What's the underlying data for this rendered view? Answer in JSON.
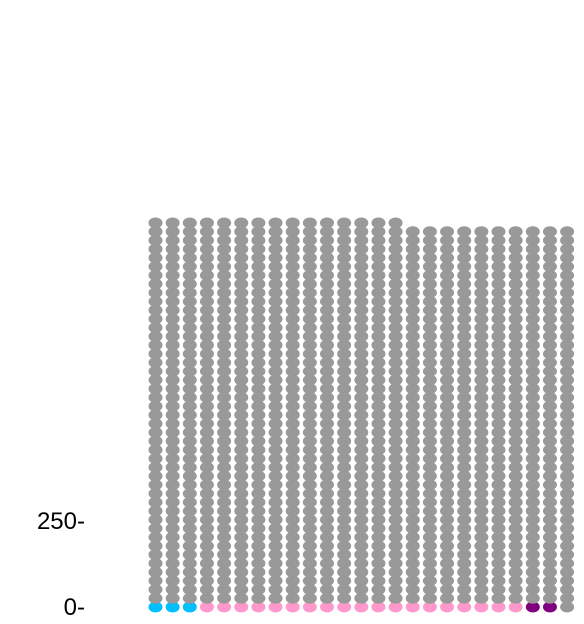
{
  "chart_data": {
    "type": "waffle",
    "columns": 25,
    "y_ticks": [
      {
        "label": "250-",
        "value": 250
      },
      {
        "label": "0-",
        "value": 0
      }
    ],
    "series": [
      {
        "count": 3,
        "color": "#00bfff"
      },
      {
        "count": 19,
        "color": "#ff99cc"
      },
      {
        "count": 2,
        "color": "#800080"
      },
      {
        "count": 1091,
        "color": "#999999"
      }
    ],
    "ylim": [
      0,
      1115
    ]
  }
}
